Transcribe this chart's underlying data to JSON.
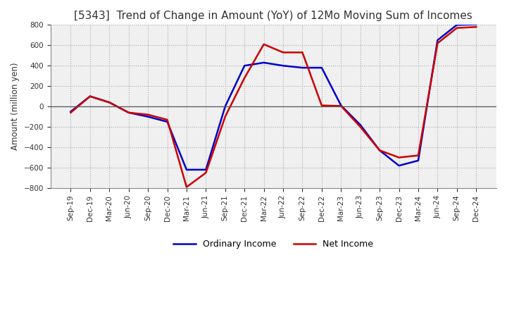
{
  "title": "[5343]  Trend of Change in Amount (YoY) of 12Mo Moving Sum of Incomes",
  "ylabel": "Amount (million yen)",
  "ylim": [
    -800,
    800
  ],
  "yticks": [
    -800,
    -600,
    -400,
    -200,
    0,
    200,
    400,
    600,
    800
  ],
  "x_labels": [
    "Sep-19",
    "Dec-19",
    "Mar-20",
    "Jun-20",
    "Sep-20",
    "Dec-20",
    "Mar-21",
    "Jun-21",
    "Sep-21",
    "Dec-21",
    "Mar-22",
    "Jun-22",
    "Sep-22",
    "Dec-22",
    "Mar-23",
    "Jun-23",
    "Sep-23",
    "Dec-23",
    "Mar-24",
    "Jun-24",
    "Sep-24",
    "Dec-24"
  ],
  "ordinary_income": [
    -50,
    100,
    40,
    -60,
    -100,
    -150,
    -620,
    -620,
    0,
    400,
    430,
    400,
    380,
    380,
    10,
    -180,
    -430,
    -580,
    -530,
    650,
    800,
    805
  ],
  "net_income": [
    -60,
    100,
    40,
    -60,
    -80,
    -130,
    -790,
    -650,
    -100,
    280,
    610,
    530,
    530,
    10,
    5,
    -200,
    -430,
    -500,
    -480,
    620,
    770,
    780
  ],
  "ordinary_color": "#0000cc",
  "net_color": "#cc0000",
  "background_color": "#ffffff",
  "plot_bg_color": "#f0f0f0",
  "grid_color": "#aaaaaa",
  "title_fontsize": 11,
  "legend_labels": [
    "Ordinary Income",
    "Net Income"
  ]
}
